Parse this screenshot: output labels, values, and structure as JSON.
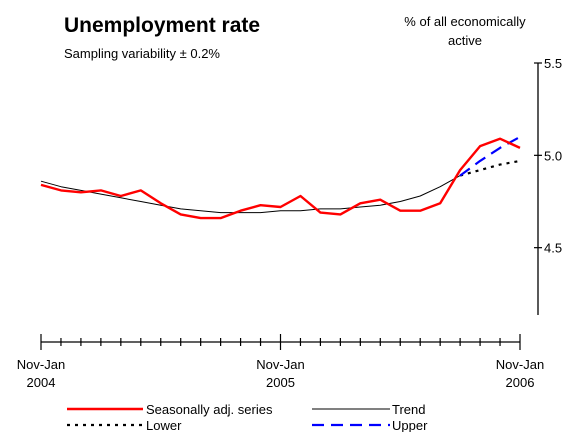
{
  "chart_data": {
    "type": "line",
    "title": "Unemployment rate",
    "subtitle": "Sampling variability ± 0.2%",
    "ylabel": "% of all economically active",
    "ylim": [
      4.0,
      5.5
    ],
    "yticks": [
      4.5,
      5.0,
      5.5
    ],
    "ytick_labels": [
      "4.5",
      "5.0",
      "5.5"
    ],
    "xlim": [
      0,
      24
    ],
    "xticks": [
      {
        "x": 0,
        "label_top": "Nov-Jan",
        "label_bottom": "2004"
      },
      {
        "x": 12,
        "label_top": "Nov-Jan",
        "label_bottom": "2005"
      },
      {
        "x": 24,
        "label_top": "Nov-Jan",
        "label_bottom": "2006"
      }
    ],
    "x": [
      0,
      1,
      2,
      3,
      4,
      5,
      6,
      7,
      8,
      9,
      10,
      11,
      12,
      13,
      14,
      15,
      16,
      17,
      18,
      19,
      20,
      21,
      22,
      23,
      24
    ],
    "series": [
      {
        "name": "Seasonally adj. series",
        "color": "#ff0000",
        "style": "solid",
        "values": [
          4.84,
          4.81,
          4.8,
          4.81,
          4.78,
          4.81,
          4.74,
          4.68,
          4.66,
          4.66,
          4.7,
          4.73,
          4.72,
          4.78,
          4.69,
          4.68,
          4.74,
          4.76,
          4.7,
          4.7,
          4.74,
          4.92,
          5.05,
          5.09,
          5.04
        ]
      },
      {
        "name": "Trend",
        "color": "#000000",
        "style": "solid",
        "values": [
          4.86,
          4.83,
          4.81,
          4.79,
          4.77,
          4.75,
          4.73,
          4.71,
          4.7,
          4.69,
          4.69,
          4.69,
          4.7,
          4.7,
          4.71,
          4.71,
          4.72,
          4.73,
          4.75,
          4.78,
          4.83,
          4.89,
          null,
          null,
          null
        ]
      },
      {
        "name": "Lower",
        "color": "#000000",
        "style": "dotted",
        "values": [
          null,
          null,
          null,
          null,
          null,
          null,
          null,
          null,
          null,
          null,
          null,
          null,
          null,
          null,
          null,
          null,
          null,
          null,
          null,
          null,
          null,
          4.89,
          4.92,
          4.95,
          4.97
        ]
      },
      {
        "name": "Upper",
        "color": "#0000ff",
        "style": "dashed",
        "values": [
          null,
          null,
          null,
          null,
          null,
          null,
          null,
          null,
          null,
          null,
          null,
          null,
          null,
          null,
          null,
          null,
          null,
          null,
          null,
          null,
          null,
          4.89,
          4.97,
          5.04,
          5.1
        ]
      }
    ],
    "legend": {
      "placement": "bottom",
      "items": [
        {
          "label": "Seasonally adj. series",
          "color": "#ff0000",
          "style": "solid"
        },
        {
          "label": "Trend",
          "color": "#000000",
          "style": "solid"
        },
        {
          "label": "Lower",
          "color": "#000000",
          "style": "dotted"
        },
        {
          "label": "Upper",
          "color": "#0000ff",
          "style": "dashed"
        }
      ]
    },
    "grid": false
  }
}
